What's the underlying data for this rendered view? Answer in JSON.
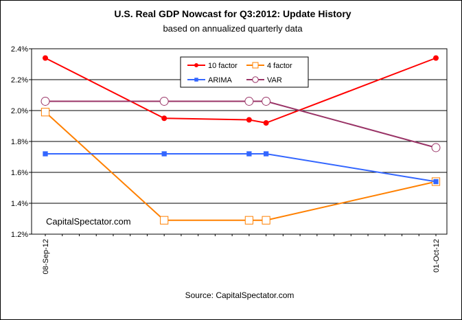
{
  "chart_data": {
    "type": "line",
    "title": "U.S. Real GDP Nowcast for Q3:2012: Update History",
    "subtitle": "based on annualized quarterly data",
    "source": "Source: CapitalSpectator.com",
    "watermark": "CapitalSpectator.com",
    "x_start_label": "08-Sep-12",
    "x_end_label": "01-Oct-12",
    "x": [
      "2012-09-08",
      "2012-09-15",
      "2012-09-20",
      "2012-09-21",
      "2012-10-01"
    ],
    "ylim": [
      1.2,
      2.4
    ],
    "yticks": [
      "1.2%",
      "1.4%",
      "1.6%",
      "1.8%",
      "2.0%",
      "2.2%",
      "2.4%"
    ],
    "grid": true,
    "legend_position": "top-center",
    "series": [
      {
        "name": "10 factor",
        "color": "#ff0000",
        "marker": "filled-circle",
        "values": [
          2.34,
          1.95,
          1.94,
          1.92,
          2.34
        ]
      },
      {
        "name": "4 factor",
        "color": "#ff8000",
        "marker": "open-square",
        "values": [
          1.99,
          1.29,
          1.29,
          1.29,
          1.54
        ]
      },
      {
        "name": "ARIMA",
        "color": "#3366ff",
        "marker": "filled-square",
        "values": [
          1.72,
          1.72,
          1.72,
          1.72,
          1.54
        ]
      },
      {
        "name": "VAR",
        "color": "#993366",
        "marker": "open-circle",
        "values": [
          2.06,
          2.06,
          2.06,
          2.06,
          1.76
        ]
      }
    ]
  }
}
